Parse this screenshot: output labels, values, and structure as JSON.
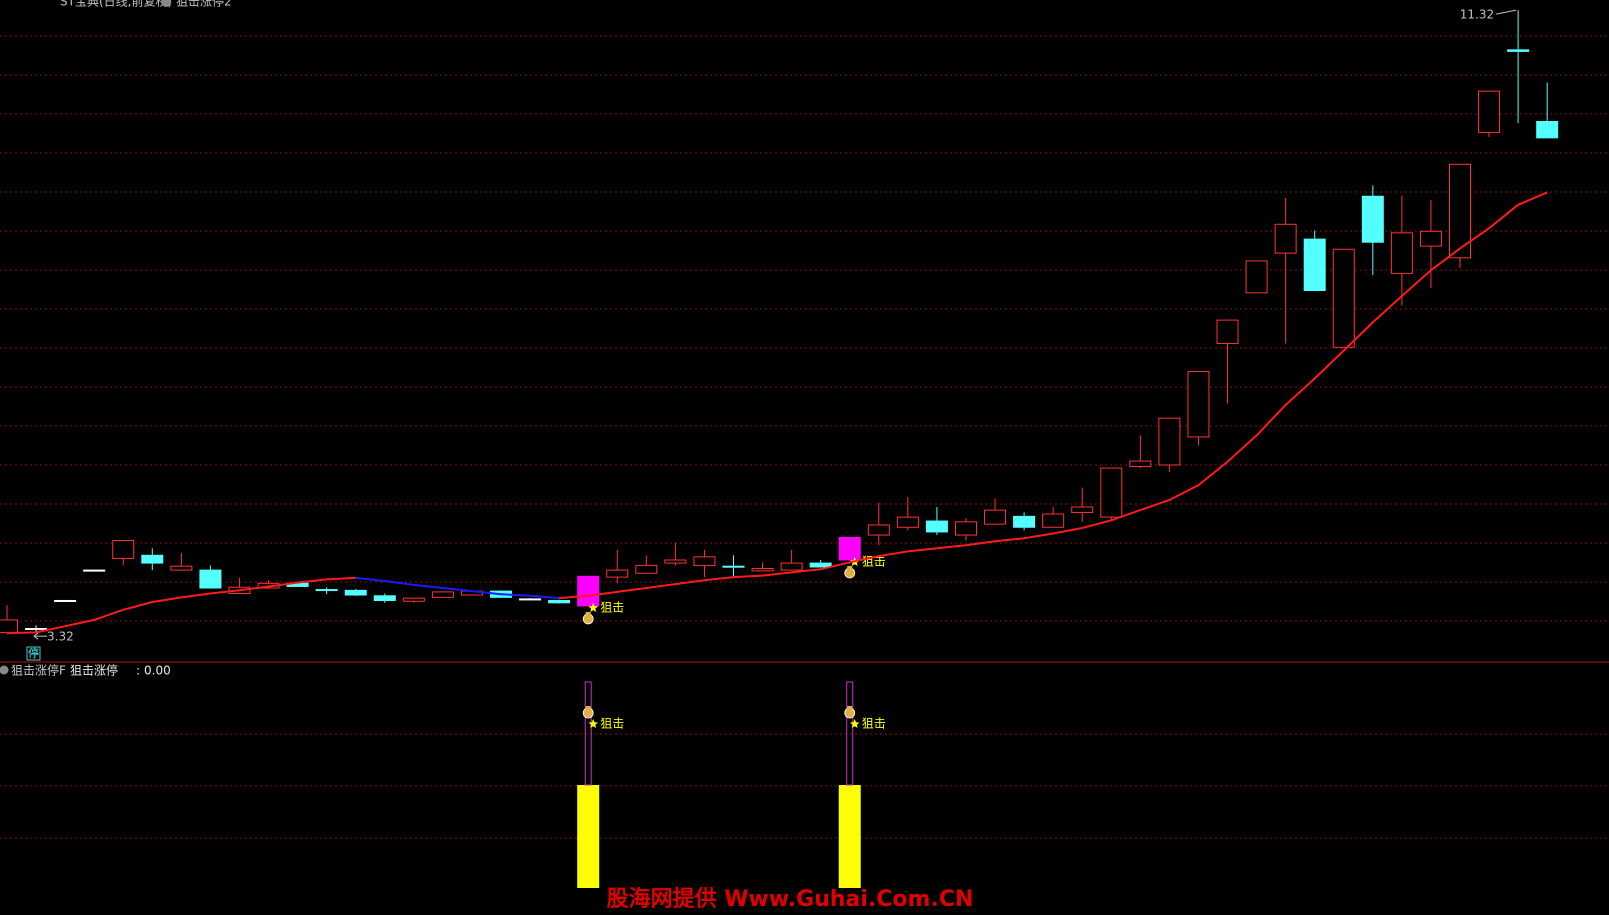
{
  "header": [
    "ST宝典(日线,前复权)",
    "狙击涨停2"
  ],
  "watermark": "股海网提供 Www.Guhai.Com.CN",
  "chart_data": [
    {
      "type": "candlestick",
      "open": [
        3.33,
        3.38,
        3.74,
        4.13,
        4.28,
        4.32,
        4.13,
        4.13,
        3.83,
        3.9,
        3.96,
        3.88,
        3.87,
        3.8,
        3.73,
        3.78,
        3.81,
        3.86,
        3.76,
        3.74,
        3.67,
        4.04,
        4.09,
        4.22,
        4.19,
        4.18,
        4.12,
        4.13,
        4.22,
        4.26,
        4.58,
        4.68,
        4.76,
        4.58,
        4.72,
        4.82,
        4.68,
        4.87,
        4.81,
        5.46,
        5.48,
        5.84,
        7.04,
        7.69,
        8.2,
        8.38,
        6.99,
        8.93,
        7.94,
        8.29,
        8.14,
        9.75,
        10.81,
        9.89
      ],
      "high": [
        3.68,
        3.42,
        3.74,
        4.13,
        4.51,
        4.41,
        4.35,
        4.19,
        4.03,
        4.0,
        3.97,
        3.91,
        3.89,
        3.83,
        3.77,
        3.86,
        3.87,
        3.87,
        3.77,
        3.75,
        4.05,
        4.39,
        4.32,
        4.48,
        4.39,
        4.32,
        4.23,
        4.39,
        4.26,
        4.55,
        5.0,
        5.07,
        4.94,
        4.8,
        5.05,
        4.87,
        4.94,
        5.19,
        5.44,
        5.86,
        6.08,
        6.68,
        7.34,
        8.1,
        8.91,
        8.49,
        8.25,
        9.07,
        8.94,
        8.88,
        9.34,
        10.28,
        11.32,
        10.39
      ],
      "low": [
        3.32,
        3.33,
        3.74,
        4.13,
        4.19,
        4.13,
        4.13,
        3.9,
        3.83,
        3.9,
        3.92,
        3.82,
        3.8,
        3.71,
        3.71,
        3.78,
        3.81,
        3.78,
        3.75,
        3.7,
        3.67,
        3.96,
        4.09,
        4.19,
        4.04,
        4.04,
        4.12,
        4.13,
        4.17,
        4.26,
        4.45,
        4.64,
        4.58,
        4.51,
        4.72,
        4.64,
        4.68,
        4.75,
        4.76,
        5.44,
        5.39,
        5.73,
        6.27,
        7.69,
        7.04,
        7.72,
        6.99,
        7.92,
        7.53,
        7.75,
        8.01,
        9.69,
        9.87,
        9.68
      ],
      "close": [
        3.49,
        3.38,
        3.74,
        4.13,
        4.51,
        4.22,
        4.18,
        3.9,
        3.91,
        3.96,
        3.92,
        3.87,
        3.81,
        3.74,
        3.77,
        3.85,
        3.86,
        3.78,
        3.76,
        3.71,
        4.05,
        4.13,
        4.19,
        4.26,
        4.3,
        4.17,
        4.15,
        4.22,
        4.17,
        4.55,
        4.71,
        4.81,
        4.62,
        4.75,
        4.9,
        4.68,
        4.85,
        4.94,
        5.44,
        5.53,
        6.08,
        6.68,
        7.34,
        8.1,
        8.57,
        7.72,
        8.25,
        8.34,
        8.46,
        8.48,
        9.34,
        10.28,
        10.79,
        9.68
      ],
      "up_color": "#ff3232",
      "down_color": "#54ffff",
      "flat_color": "#ffffff",
      "signal_color": "#ff00ff",
      "ylim": [
        2.95,
        11.45
      ],
      "grid": true,
      "ma": {
        "color": "#ff1a1a",
        "down_color": "#1a1aff",
        "values": [
          3.32,
          3.33,
          3.41,
          3.49,
          3.62,
          3.72,
          3.78,
          3.83,
          3.87,
          3.92,
          3.97,
          4.01,
          4.03,
          3.99,
          3.94,
          3.9,
          3.86,
          3.82,
          3.8,
          3.77,
          3.8,
          3.85,
          3.9,
          3.95,
          4.0,
          4.04,
          4.06,
          4.1,
          4.14,
          4.23,
          4.31,
          4.37,
          4.41,
          4.45,
          4.5,
          4.54,
          4.6,
          4.67,
          4.77,
          4.9,
          5.03,
          5.22,
          5.52,
          5.86,
          6.25,
          6.59,
          6.95,
          7.31,
          7.65,
          7.98,
          8.26,
          8.52,
          8.82,
          8.98
        ]
      },
      "max_label": "11.32",
      "min_label": "3.32",
      "badge": "停",
      "signal_label": "狙击"
    },
    {
      "type": "bar",
      "title": "狙击涨停F",
      "legend_value": "0.00",
      "ylim": [
        0,
        2
      ],
      "grid": true,
      "series": [
        {
          "name": "狙击涨停",
          "color": "#ffff00",
          "values": [
            0,
            0,
            0,
            0,
            0,
            0,
            0,
            0,
            0,
            0,
            0,
            0,
            0,
            0,
            0,
            0,
            0,
            0,
            0,
            0,
            1,
            0,
            0,
            0,
            0,
            0,
            0,
            0,
            0,
            1,
            0,
            0,
            0,
            0,
            0,
            0,
            0,
            0,
            0,
            0,
            0,
            0,
            0,
            0,
            0,
            0,
            0,
            0,
            0,
            0,
            0,
            0,
            0,
            0
          ]
        }
      ],
      "signal_label": "狙击"
    }
  ]
}
